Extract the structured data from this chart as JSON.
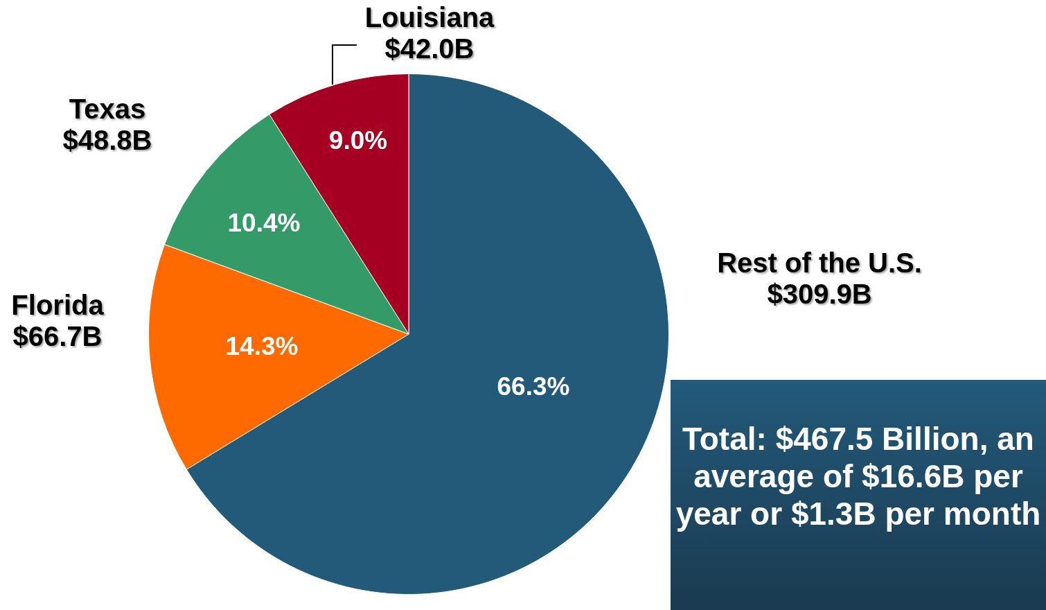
{
  "chart_data": {
    "type": "pie",
    "categories": [
      "Rest of the U.S.",
      "Florida",
      "Texas",
      "Louisiana"
    ],
    "values": [
      66.3,
      14.3,
      10.4,
      9.0
    ],
    "value_labels": [
      "66.3%",
      "14.3%",
      "10.4%",
      "9.0%"
    ],
    "colors": [
      "#235a7a",
      "#ff6a00",
      "#349a68",
      "#a50021"
    ],
    "legend": false,
    "annotations": [
      {
        "text": "$309.9B",
        "x": "Rest of the U.S."
      },
      {
        "text": "$66.7B",
        "x": "Florida"
      },
      {
        "text": "$48.8B",
        "x": "Texas"
      },
      {
        "text": "$42.0B",
        "x": "Louisiana"
      },
      "Total: $467.5 Billion, an average of $16.6B per year or $1.3B per month"
    ]
  }
}
